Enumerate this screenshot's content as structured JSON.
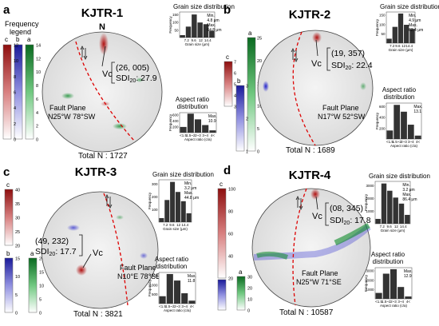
{
  "legend": {
    "title_line1": "Frequency",
    "title_line2": "legend"
  },
  "colors": {
    "c": "#a01818",
    "b": "#2a2ad0",
    "a": "#0f8a2a",
    "fault": "#dd0000",
    "bar": "#333333"
  },
  "hist_axis": {
    "freq_label": "Frequency",
    "grain_title": "Grain size distribution",
    "grain_xlabel": "Grain size (μm)",
    "grain_ticks": [
      "7.2",
      "9.6",
      "12",
      "14.4"
    ],
    "aspect_title_line1": "Aspect ratio",
    "aspect_title_line2": "distribution",
    "aspect_xlabel": "Aspect ratio (c/a)",
    "aspect_ticks": [
      "<1.5",
      "1.5~2",
      "2~3",
      "3~4",
      "4<"
    ]
  },
  "panels": [
    {
      "letter": "a",
      "title": "KJTR-1",
      "north": "N",
      "vc": {
        "label": "Vc",
        "line1": "(26, 005)",
        "line2": "SDI",
        "sub": "20",
        "value": ": 27.9"
      },
      "fault": {
        "line1": "Fault Plane",
        "line2": "N25°W 78°SW"
      },
      "total": "Total N : 1727",
      "legend_scales": [
        {
          "key": "c",
          "ticks": [
            "12",
            "10",
            "8",
            "6",
            "4",
            "2",
            "0"
          ]
        },
        {
          "key": "b",
          "ticks": []
        },
        {
          "key": "a",
          "ticks": [
            "14",
            "12",
            "10",
            "8",
            "6",
            "4",
            "2",
            "0"
          ]
        }
      ],
      "grain_note": [
        "Min.",
        "4.8 μm",
        "Max.",
        "64.8 μm"
      ],
      "grain_values": [
        0.1,
        0.45,
        0.95,
        0.62,
        0.55,
        0.28
      ],
      "grain_yticks": [
        "50",
        "100",
        "150"
      ],
      "aspect_note": [
        "Max.",
        "10.9"
      ],
      "aspect_values": [
        0.3,
        1.0,
        0.7,
        0.4,
        0.12
      ],
      "aspect_yticks": [
        "200",
        "400",
        "600"
      ]
    },
    {
      "letter": "b",
      "title": "KJTR-2",
      "north": "",
      "vc": {
        "label": "Vc",
        "line1": "(19, 357)",
        "line2": "SDI",
        "sub": "20",
        "value": ": 22.4"
      },
      "fault": {
        "line1": "Fault Plane",
        "line2": "N17°W 52°SW"
      },
      "total": "Total N : 1689",
      "legend_scales": [
        {
          "key": "c",
          "ticks": [
            "7",
            "6",
            "5",
            "4",
            "3"
          ]
        },
        {
          "key": "b",
          "ticks": [
            "3",
            "2",
            "1"
          ]
        },
        {
          "key": "a",
          "ticks": [
            "25",
            "20",
            "15",
            "10",
            "5",
            "0"
          ]
        }
      ],
      "grain_note": [
        "Min.",
        "4.9 μm",
        "Max.",
        "62.4 μm"
      ],
      "grain_values": [
        0.15,
        0.55,
        1.0,
        0.62,
        0.48
      ],
      "grain_yticks": [
        "50",
        "100",
        "150"
      ],
      "aspect_note": [
        "Max.",
        "13.1"
      ],
      "aspect_values": [
        0.25,
        1.0,
        0.8,
        0.42,
        0.1
      ],
      "aspect_yticks": [
        "200",
        "400",
        "600"
      ]
    },
    {
      "letter": "c",
      "title": "KJTR-3",
      "north": "",
      "vc": {
        "label": "Vc",
        "line1": "(49, 232)",
        "line2": "SDI",
        "sub": "20",
        "value": ": 17.7"
      },
      "fault": {
        "line1": "Fault Plane",
        "line2": "N10°E 78°SE"
      },
      "total": "Total N : 3821",
      "legend_scales": [
        {
          "key": "c",
          "ticks": [
            "40",
            "35",
            "30",
            "25",
            "20"
          ]
        },
        {
          "key": "b",
          "ticks": [
            "15",
            "10",
            "5",
            "0"
          ]
        },
        {
          "key": "a",
          "ticks": [
            "20",
            "15",
            "10",
            "5",
            "0"
          ]
        }
      ],
      "grain_note": [
        "Min.",
        "3.2 μm",
        "Max.",
        "44.8 μm"
      ],
      "grain_values": [
        0.1,
        0.55,
        1.0,
        0.75,
        0.52,
        0.22
      ],
      "grain_yticks": [
        "100",
        "200",
        "300"
      ],
      "aspect_note": [
        "Max.",
        "11.8"
      ],
      "aspect_values": [
        0.25,
        1.0,
        0.78,
        0.35,
        0.1
      ],
      "aspect_yticks": [
        "500",
        "1000",
        "1500"
      ]
    },
    {
      "letter": "d",
      "title": "KJTR-4",
      "north": "",
      "vc": {
        "label": "Vc",
        "line1": "(08, 345)",
        "line2": "SDI",
        "sub": "20",
        "value": ": 17.8"
      },
      "fault": {
        "line1": "Fault Plane",
        "line2": "N25°W 71°SE"
      },
      "total": "Total N : 10587",
      "legend_scales": [
        {
          "key": "c",
          "ticks": [
            "100",
            "80",
            "60",
            "40",
            "20"
          ]
        },
        {
          "key": "b",
          "ticks": []
        },
        {
          "key": "a",
          "ticks": [
            "30",
            "20",
            "10",
            "0"
          ]
        }
      ],
      "grain_note": [
        "Min.",
        "3.2 μm",
        "Max.",
        "86.4 μm"
      ],
      "grain_values": [
        0.12,
        1.0,
        0.82,
        0.65,
        0.5,
        0.22
      ],
      "grain_yticks": [
        "1000",
        "2000",
        "3000"
      ],
      "aspect_note": [
        "Max.",
        "12.9"
      ],
      "aspect_values": [
        0.2,
        0.85,
        1.0,
        0.4,
        0.08
      ],
      "aspect_yticks": [
        "1000",
        "2000",
        "3000"
      ]
    }
  ]
}
